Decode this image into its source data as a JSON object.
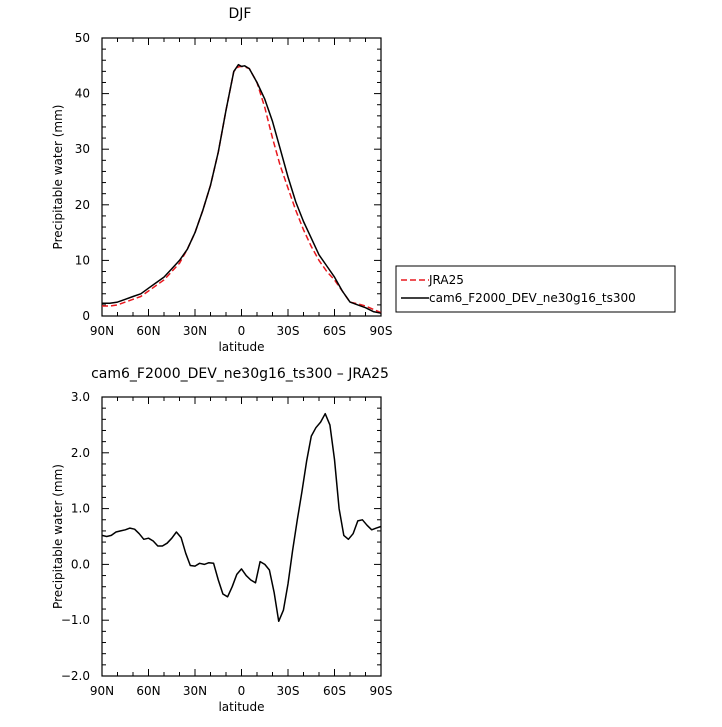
{
  "chart_data": [
    {
      "type": "line",
      "title": "DJF",
      "xlabel": "latitude",
      "ylabel": "Precipitable water (mm)",
      "xlim": [
        -90,
        90
      ],
      "ylim": [
        0,
        50
      ],
      "x_ticks": [
        -90,
        -60,
        -30,
        0,
        30,
        60,
        90
      ],
      "x_tick_labels": [
        "90N",
        "60N",
        "30N",
        "0",
        "30S",
        "60S",
        "90S"
      ],
      "y_ticks": [
        0,
        10,
        20,
        30,
        40,
        50
      ],
      "y_tick_labels": [
        "0",
        "10",
        "20",
        "30",
        "40",
        "50"
      ],
      "legend": {
        "placement": "right",
        "entries": [
          "JRA25",
          "cam6_F2000_DEV_ne30g16_ts300"
        ]
      },
      "series": [
        {
          "name": "JRA25",
          "color": "#e8181e",
          "dash": "dashed",
          "x": [
            -90,
            -85,
            -80,
            -75,
            -70,
            -65,
            -60,
            -55,
            -50,
            -45,
            -40,
            -35,
            -30,
            -25,
            -20,
            -15,
            -10,
            -5,
            -2,
            0,
            2,
            5,
            10,
            15,
            20,
            25,
            30,
            35,
            40,
            45,
            50,
            55,
            60,
            65,
            70,
            75,
            80,
            85,
            90
          ],
          "values": [
            1.8,
            1.8,
            2.0,
            2.5,
            3.0,
            3.5,
            4.5,
            5.5,
            6.5,
            8.0,
            9.5,
            12.0,
            15.0,
            19.0,
            23.5,
            29.5,
            37.0,
            44.0,
            44.8,
            44.9,
            44.8,
            44.5,
            42.0,
            37.5,
            32.0,
            27.0,
            23.0,
            19.0,
            15.5,
            12.5,
            10.0,
            8.0,
            6.5,
            4.5,
            2.5,
            2.2,
            1.8,
            1.2,
            0.6
          ]
        },
        {
          "name": "cam6_F2000_DEV_ne30g16_ts300",
          "color": "#000000",
          "dash": "solid",
          "x": [
            -90,
            -85,
            -80,
            -75,
            -70,
            -65,
            -60,
            -55,
            -50,
            -45,
            -40,
            -35,
            -30,
            -25,
            -20,
            -15,
            -10,
            -5,
            -2,
            0,
            2,
            5,
            10,
            15,
            20,
            25,
            30,
            35,
            40,
            45,
            50,
            55,
            60,
            65,
            70,
            75,
            80,
            85,
            90
          ],
          "values": [
            2.3,
            2.3,
            2.5,
            3.0,
            3.5,
            4.0,
            5.0,
            6.0,
            7.0,
            8.5,
            10.0,
            12.0,
            15.0,
            19.0,
            23.5,
            29.5,
            37.0,
            44.0,
            45.2,
            44.9,
            45.0,
            44.5,
            42.0,
            39.0,
            35.0,
            30.0,
            25.0,
            20.5,
            17.0,
            14.0,
            11.0,
            9.0,
            7.0,
            4.5,
            2.5,
            2.0,
            1.5,
            0.8,
            0.5
          ]
        }
      ]
    },
    {
      "type": "line",
      "title": "cam6_F2000_DEV_ne30g16_ts300 – JRA25",
      "xlabel": "latitude",
      "ylabel": "Precipitable water (mm)",
      "xlim": [
        -90,
        90
      ],
      "ylim": [
        -2.0,
        3.0
      ],
      "x_ticks": [
        -90,
        -60,
        -30,
        0,
        30,
        60,
        90
      ],
      "x_tick_labels": [
        "90N",
        "60N",
        "30N",
        "0",
        "30S",
        "60S",
        "90S"
      ],
      "y_ticks": [
        -2.0,
        -1.0,
        0.0,
        1.0,
        2.0,
        3.0
      ],
      "y_tick_labels": [
        "−2.0",
        "−1.0",
        "0.0",
        "1.0",
        "2.0",
        "3.0"
      ],
      "series": [
        {
          "color": "#000000",
          "dash": "solid",
          "x": [
            -90,
            -87,
            -84,
            -81,
            -78,
            -75,
            -72,
            -69,
            -66,
            -63,
            -60,
            -57,
            -54,
            -51,
            -48,
            -45,
            -42,
            -39,
            -36,
            -33,
            -30,
            -27,
            -24,
            -21,
            -18,
            -15,
            -12,
            -9,
            -6,
            -3,
            0,
            3,
            6,
            9,
            12,
            15,
            18,
            21,
            24,
            27,
            30,
            33,
            36,
            39,
            42,
            45,
            48,
            51,
            54,
            57,
            60,
            63,
            66,
            69,
            72,
            75,
            78,
            81,
            84,
            87,
            90
          ],
          "values": [
            0.52,
            0.5,
            0.52,
            0.58,
            0.6,
            0.62,
            0.65,
            0.63,
            0.55,
            0.45,
            0.47,
            0.42,
            0.33,
            0.33,
            0.38,
            0.47,
            0.58,
            0.48,
            0.2,
            -0.02,
            -0.03,
            0.02,
            0.0,
            0.03,
            0.02,
            -0.28,
            -0.53,
            -0.58,
            -0.4,
            -0.18,
            -0.08,
            -0.2,
            -0.28,
            -0.33,
            0.05,
            0.0,
            -0.1,
            -0.5,
            -1.02,
            -0.82,
            -0.35,
            0.25,
            0.8,
            1.3,
            1.85,
            2.3,
            2.45,
            2.55,
            2.7,
            2.5,
            1.88,
            1.0,
            0.52,
            0.45,
            0.55,
            0.78,
            0.8,
            0.7,
            0.62,
            0.65,
            0.68
          ]
        }
      ]
    }
  ]
}
